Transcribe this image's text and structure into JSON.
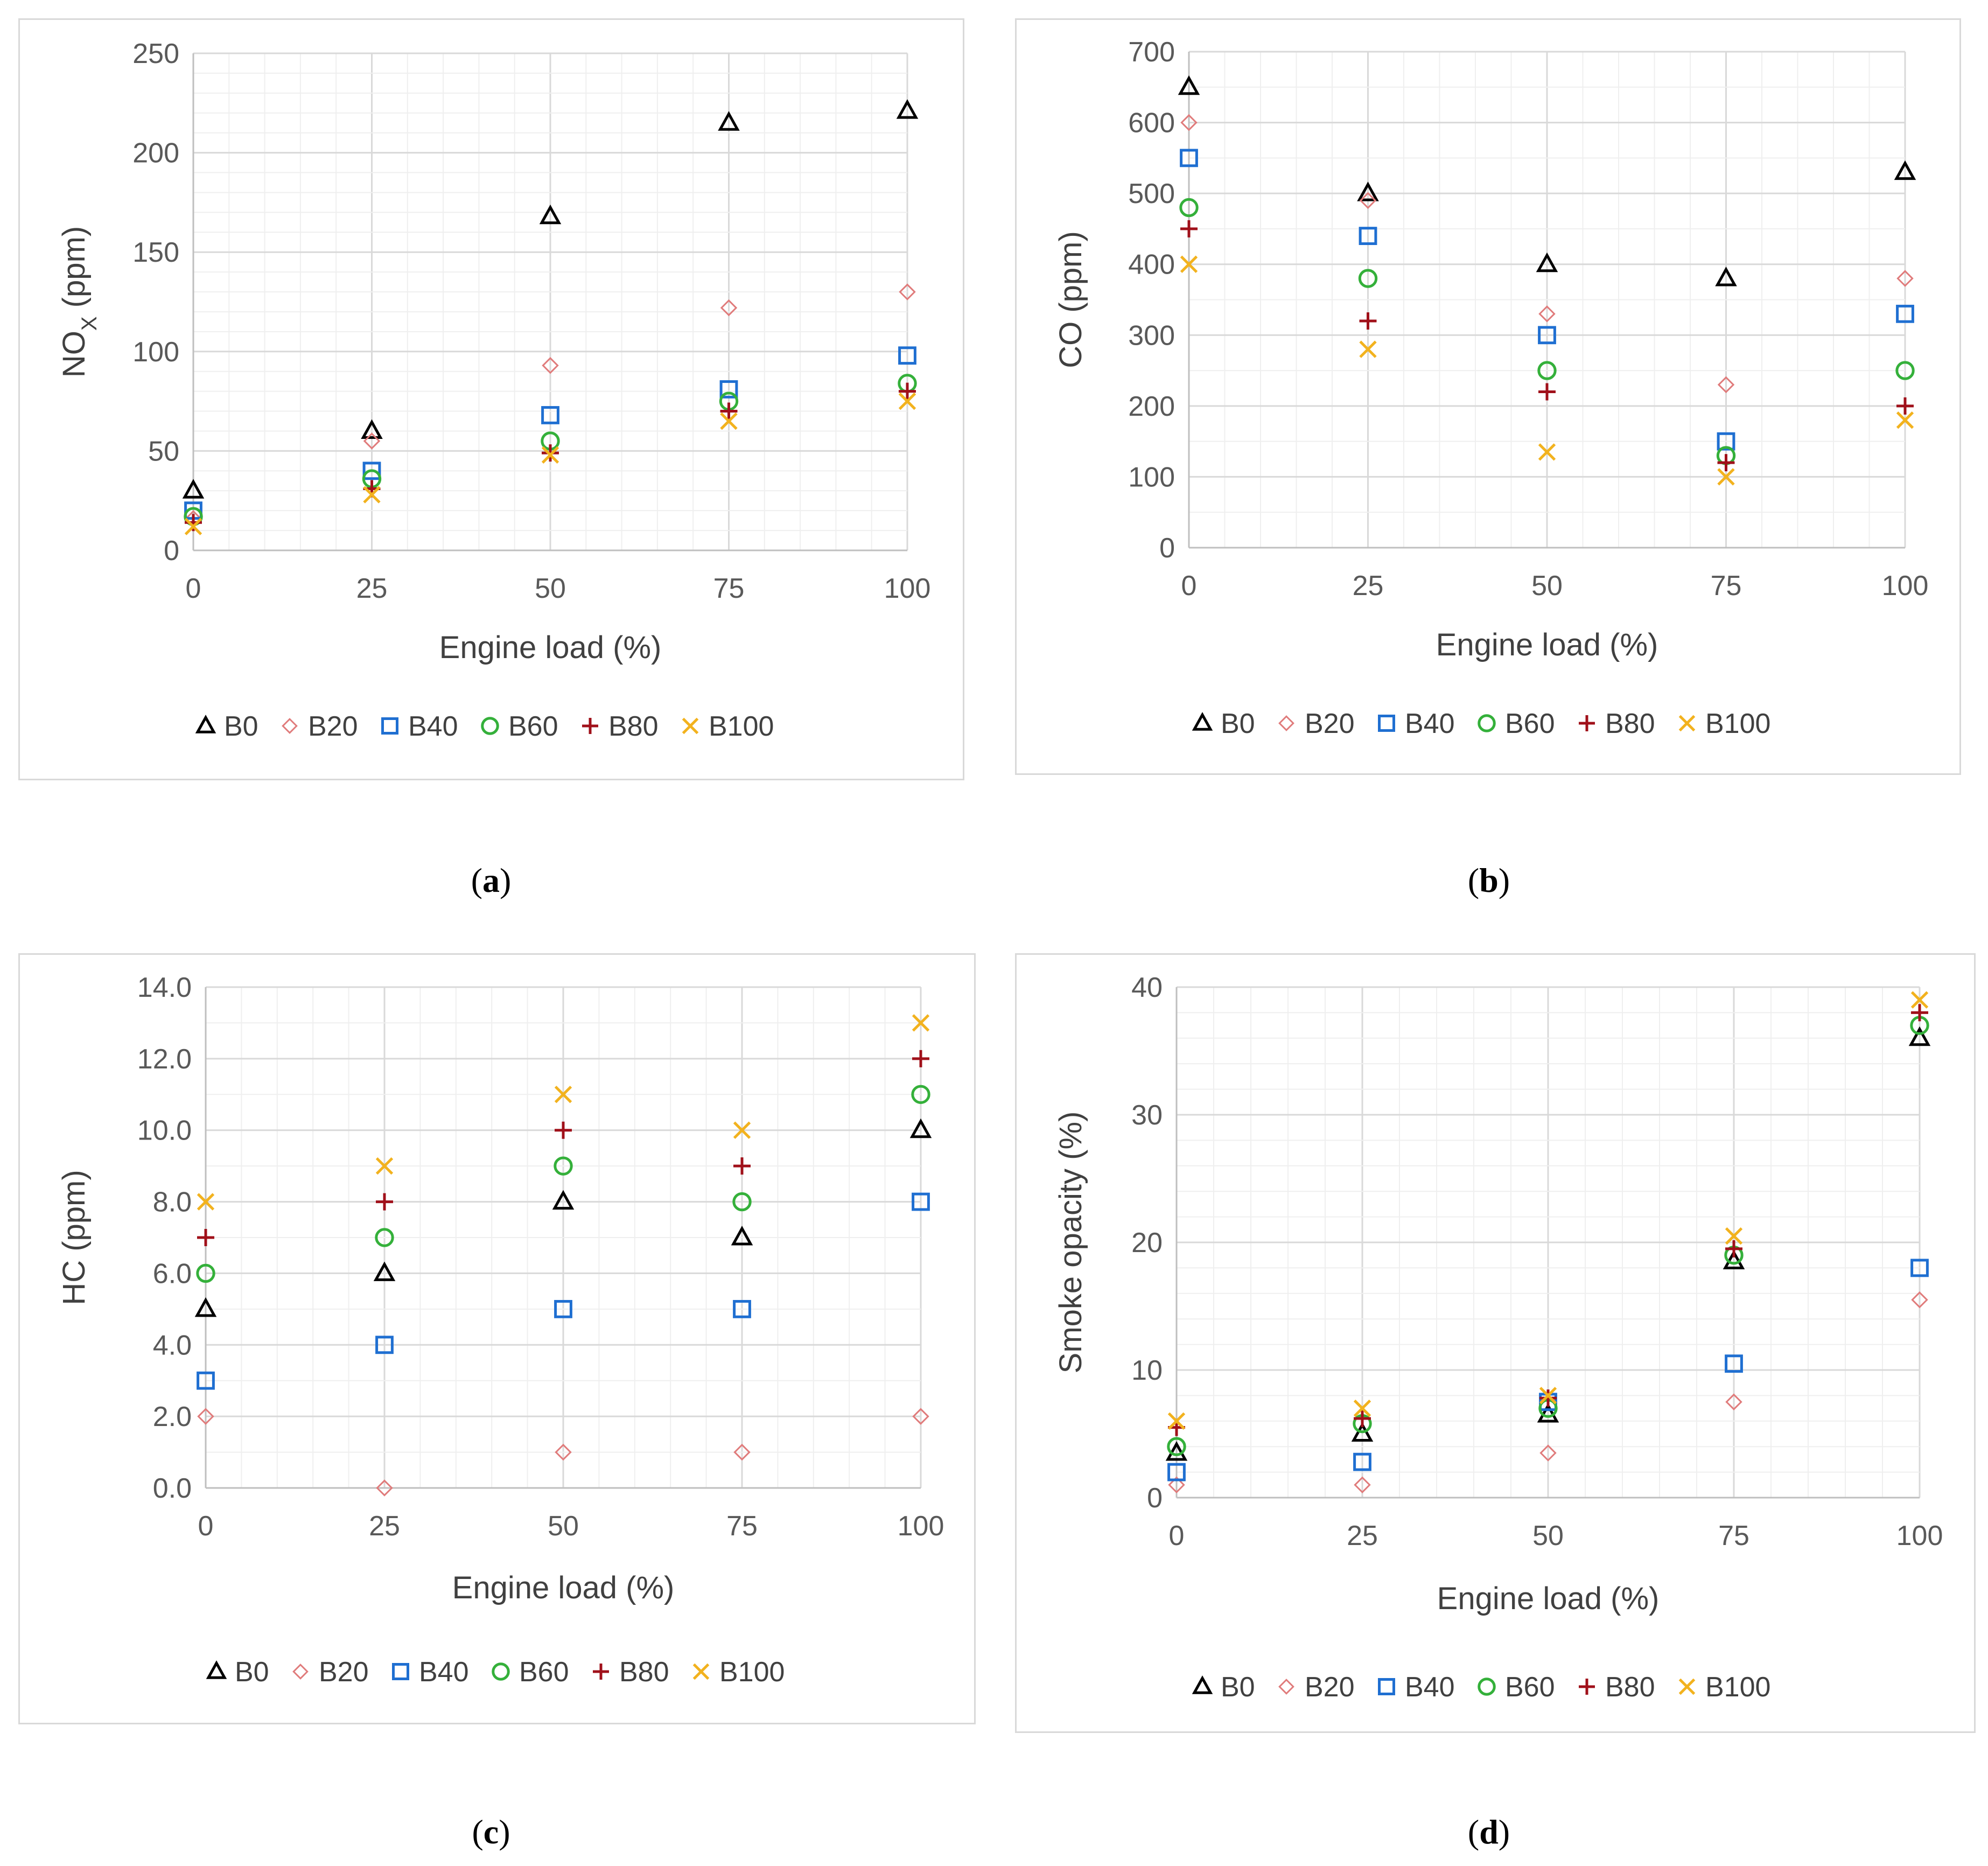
{
  "captions": [
    {
      "open": "(",
      "letter": "a",
      "close": ")"
    },
    {
      "open": "(",
      "letter": "b",
      "close": ")"
    },
    {
      "open": "(",
      "letter": "c",
      "close": ")"
    },
    {
      "open": "(",
      "letter": "d",
      "close": ")"
    }
  ],
  "colors": {
    "B0": "#000000",
    "B20": "#e07b7b",
    "B40": "#1f6fd1",
    "B60": "#34b03a",
    "B80": "#a0101a",
    "B100": "#f2b21e",
    "grid_major": "#d9d9d9",
    "grid_minor": "#efefef",
    "axis": "#bfbfbf"
  },
  "chart_data": [
    {
      "type": "scatter",
      "ylabel_main": "NO",
      "ylabel_sub": "X",
      "ylabel_tail": " (ppm)",
      "xlabel": "Engine load (%)",
      "xlim": [
        0,
        100
      ],
      "ylim": [
        0,
        250
      ],
      "x_ticks": [
        "0",
        "25",
        "50",
        "75",
        "100"
      ],
      "y_ticks": [
        "0",
        "50",
        "100",
        "150",
        "200",
        "250"
      ],
      "grid": true,
      "legend_position": "bottom",
      "x": [
        0,
        25,
        50,
        75,
        100
      ],
      "series": [
        {
          "name": "B0",
          "marker": "triangle",
          "values": [
            30,
            60,
            168,
            215,
            221
          ]
        },
        {
          "name": "B20",
          "marker": "diamond",
          "values": [
            16,
            55,
            93,
            122,
            130
          ]
        },
        {
          "name": "B40",
          "marker": "square",
          "values": [
            20,
            40,
            68,
            81,
            98
          ]
        },
        {
          "name": "B60",
          "marker": "circle",
          "values": [
            17,
            36,
            55,
            75,
            84
          ]
        },
        {
          "name": "B80",
          "marker": "plus",
          "values": [
            14,
            31,
            49,
            70,
            80
          ]
        },
        {
          "name": "B100",
          "marker": "x",
          "values": [
            12,
            28,
            48,
            65,
            75
          ]
        }
      ]
    },
    {
      "type": "scatter",
      "ylabel_main": "CO (ppm)",
      "ylabel_sub": "",
      "ylabel_tail": "",
      "xlabel": "Engine load (%)",
      "xlim": [
        0,
        100
      ],
      "ylim": [
        0,
        700
      ],
      "x_ticks": [
        "0",
        "25",
        "50",
        "75",
        "100"
      ],
      "y_ticks": [
        "0",
        "100",
        "200",
        "300",
        "400",
        "500",
        "600",
        "700"
      ],
      "grid": true,
      "legend_position": "bottom",
      "x": [
        0,
        25,
        50,
        75,
        100
      ],
      "series": [
        {
          "name": "B0",
          "marker": "triangle",
          "values": [
            650,
            500,
            400,
            380,
            530
          ]
        },
        {
          "name": "B20",
          "marker": "diamond",
          "values": [
            600,
            490,
            330,
            230,
            380
          ]
        },
        {
          "name": "B40",
          "marker": "square",
          "values": [
            550,
            440,
            300,
            150,
            330
          ]
        },
        {
          "name": "B60",
          "marker": "circle",
          "values": [
            480,
            380,
            250,
            130,
            250
          ]
        },
        {
          "name": "B80",
          "marker": "plus",
          "values": [
            450,
            320,
            220,
            120,
            200
          ]
        },
        {
          "name": "B100",
          "marker": "x",
          "values": [
            400,
            280,
            135,
            100,
            180
          ]
        }
      ]
    },
    {
      "type": "scatter",
      "ylabel_main": "HC (ppm)",
      "ylabel_sub": "",
      "ylabel_tail": "",
      "xlabel": "Engine load (%)",
      "xlim": [
        0,
        100
      ],
      "ylim": [
        0,
        14
      ],
      "x_ticks": [
        "0",
        "25",
        "50",
        "75",
        "100"
      ],
      "y_ticks": [
        "0.0",
        "2.0",
        "4.0",
        "6.0",
        "8.0",
        "10.0",
        "12.0",
        "14.0"
      ],
      "grid": true,
      "legend_position": "bottom",
      "x": [
        0,
        25,
        50,
        75,
        100
      ],
      "series": [
        {
          "name": "B0",
          "marker": "triangle",
          "values": [
            5,
            6,
            8,
            7,
            10
          ]
        },
        {
          "name": "B20",
          "marker": "diamond",
          "values": [
            2,
            0,
            1,
            1,
            2
          ]
        },
        {
          "name": "B40",
          "marker": "square",
          "values": [
            3,
            4,
            5,
            5,
            8
          ]
        },
        {
          "name": "B60",
          "marker": "circle",
          "values": [
            6,
            7,
            9,
            8,
            11
          ]
        },
        {
          "name": "B80",
          "marker": "plus",
          "values": [
            7,
            8,
            10,
            9,
            12
          ]
        },
        {
          "name": "B100",
          "marker": "x",
          "values": [
            8,
            9,
            11,
            10,
            13
          ]
        }
      ]
    },
    {
      "type": "scatter",
      "ylabel_main": "Smoke opacity (%)",
      "ylabel_sub": "",
      "ylabel_tail": "",
      "xlabel": "Engine load (%)",
      "xlim": [
        0,
        100
      ],
      "ylim": [
        0,
        40
      ],
      "x_ticks": [
        "0",
        "25",
        "50",
        "75",
        "100"
      ],
      "y_ticks": [
        "0",
        "10",
        "20",
        "30",
        "40"
      ],
      "grid": true,
      "legend_position": "bottom",
      "x": [
        0,
        25,
        50,
        75,
        100
      ],
      "series": [
        {
          "name": "B0",
          "marker": "triangle",
          "values": [
            3.5,
            5,
            6.5,
            18.5,
            36
          ]
        },
        {
          "name": "B20",
          "marker": "diamond",
          "values": [
            1,
            1,
            3.5,
            7.5,
            15.5
          ]
        },
        {
          "name": "B40",
          "marker": "square",
          "values": [
            2,
            2.8,
            7.5,
            10.5,
            18
          ]
        },
        {
          "name": "B60",
          "marker": "circle",
          "values": [
            4,
            5.8,
            7,
            19,
            37
          ]
        },
        {
          "name": "B80",
          "marker": "plus",
          "values": [
            5.5,
            6.2,
            7.8,
            19.5,
            38
          ]
        },
        {
          "name": "B100",
          "marker": "x",
          "values": [
            6,
            7,
            8,
            20.5,
            39
          ]
        }
      ]
    }
  ]
}
